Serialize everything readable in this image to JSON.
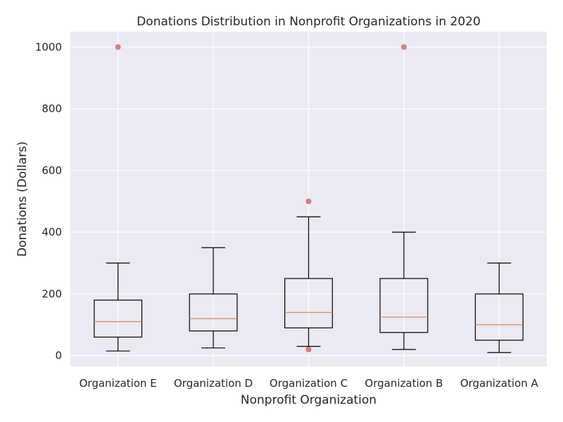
{
  "chart_data": {
    "type": "box",
    "title": "Donations Distribution in Nonprofit Organizations in 2020",
    "xlabel": "Nonprofit Organization",
    "ylabel": "Donations (Dollars)",
    "ylim": [
      -35,
      1050
    ],
    "yticks": [
      0,
      200,
      400,
      600,
      800,
      1000
    ],
    "grid": true,
    "colors": {
      "background": "#eaeaf2",
      "grid": "#ffffff",
      "box": "#000000",
      "median": "#dd8452",
      "outlier": "#c44e52"
    },
    "categories": [
      "Organization E",
      "Organization D",
      "Organization C",
      "Organization B",
      "Organization A"
    ],
    "boxes": [
      {
        "category": "Organization E",
        "whisker_low": 15,
        "q1": 60,
        "median": 110,
        "q3": 180,
        "whisker_high": 300,
        "outliers": [
          1000
        ]
      },
      {
        "category": "Organization D",
        "whisker_low": 25,
        "q1": 80,
        "median": 120,
        "q3": 200,
        "whisker_high": 350,
        "outliers": []
      },
      {
        "category": "Organization C",
        "whisker_low": 30,
        "q1": 90,
        "median": 140,
        "q3": 250,
        "whisker_high": 450,
        "outliers": [
          500,
          20
        ]
      },
      {
        "category": "Organization B",
        "whisker_low": 20,
        "q1": 75,
        "median": 125,
        "q3": 250,
        "whisker_high": 400,
        "outliers": [
          1000
        ]
      },
      {
        "category": "Organization A",
        "whisker_low": 10,
        "q1": 50,
        "median": 100,
        "q3": 200,
        "whisker_high": 300,
        "outliers": []
      }
    ]
  }
}
